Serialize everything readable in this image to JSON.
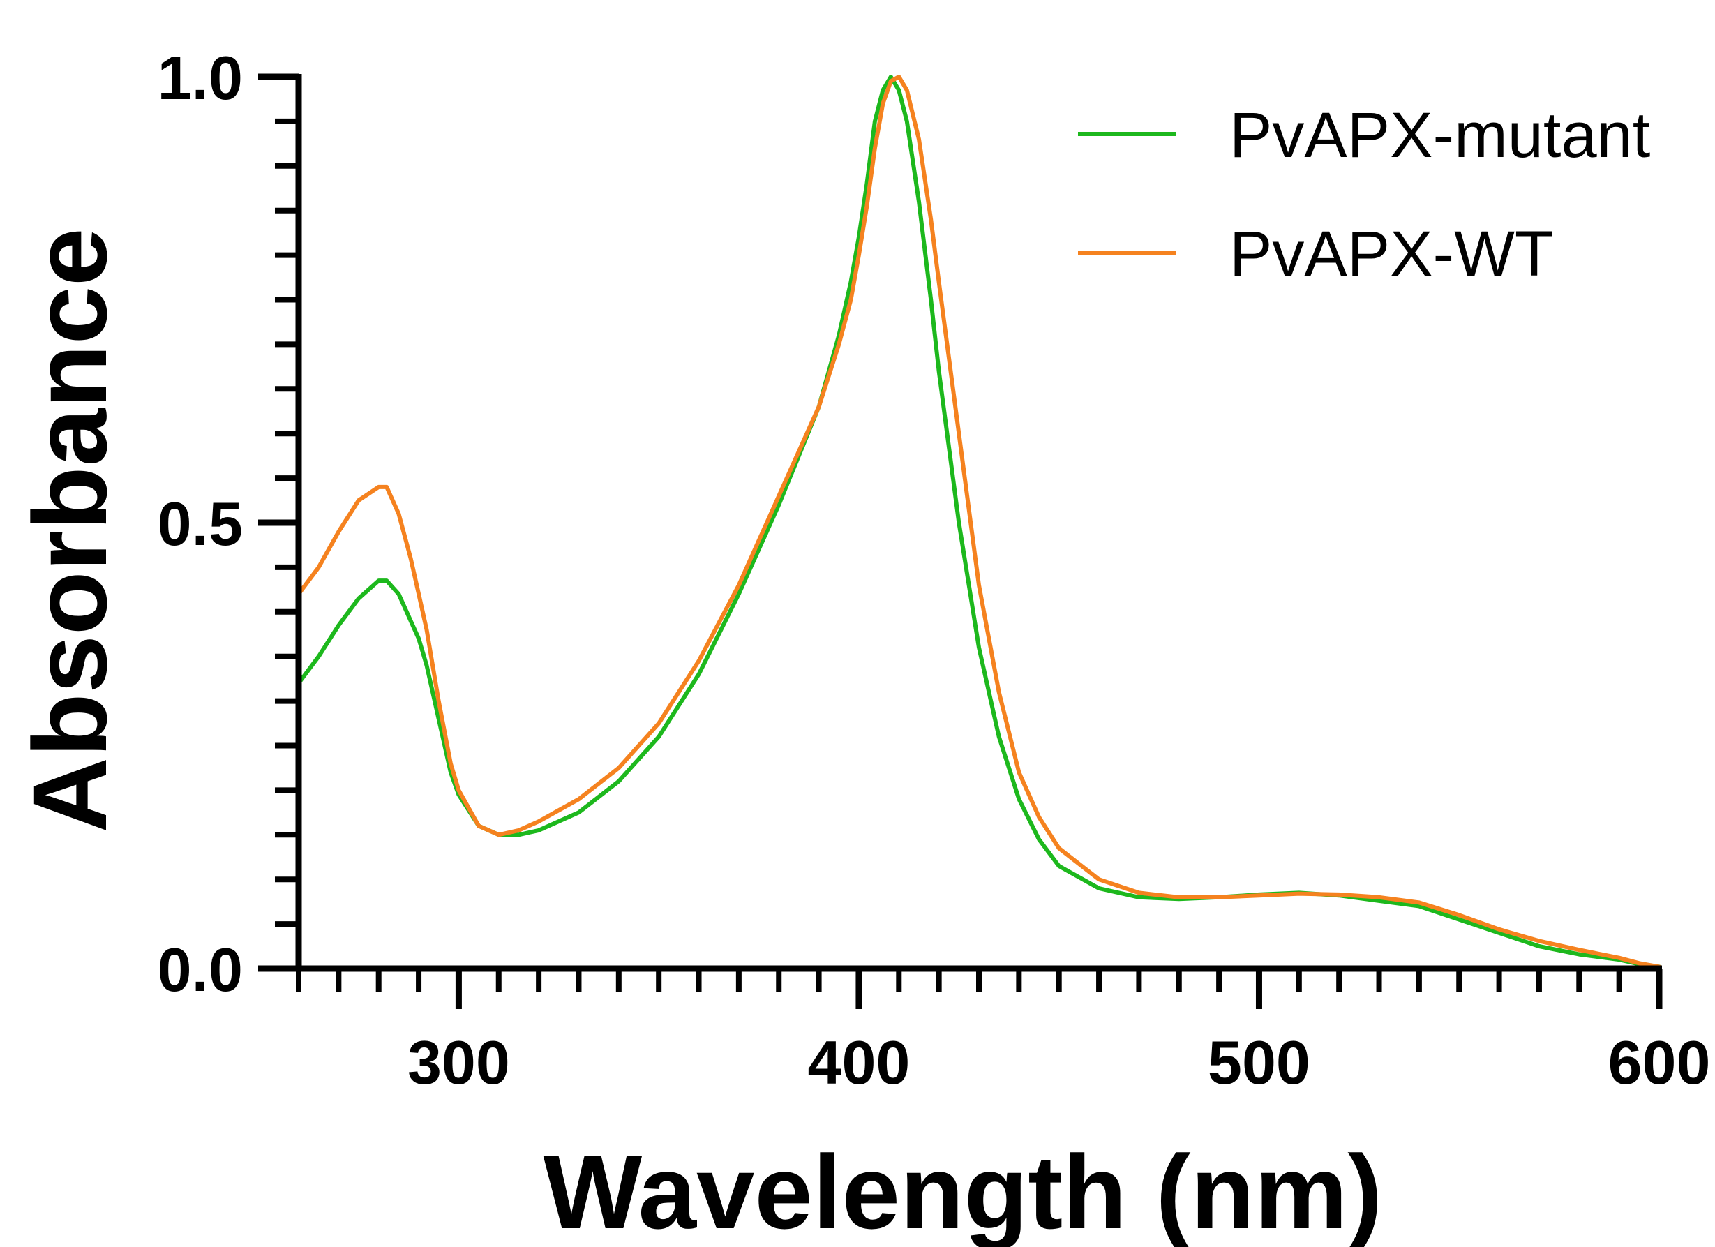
{
  "chart_data": {
    "type": "line",
    "title": "",
    "xlabel": "Wavelength (nm)",
    "ylabel": "Absorbance",
    "xlim": [
      260,
      600
    ],
    "ylim": [
      0,
      1.0
    ],
    "x_major_ticks": [
      300,
      400,
      500,
      600
    ],
    "x_tick_labels": [
      "300",
      "400",
      "500",
      "600"
    ],
    "x_minor_step": 10,
    "y_major_ticks": [
      0,
      0.5,
      1.0
    ],
    "y_tick_labels": [
      "0.0",
      "0.5",
      "1.0"
    ],
    "y_minor_step": 0.05,
    "grid": false,
    "legend_position": "top-right",
    "series": [
      {
        "name": "PvAPX-mutant",
        "color": "#1DB81D",
        "x": [
          260,
          265,
          270,
          275,
          280,
          282,
          285,
          288,
          290,
          292,
          295,
          298,
          300,
          305,
          310,
          315,
          320,
          330,
          340,
          350,
          360,
          370,
          380,
          390,
          395,
          398,
          400,
          402,
          404,
          406,
          408,
          410,
          412,
          415,
          418,
          420,
          425,
          430,
          435,
          440,
          445,
          450,
          460,
          470,
          480,
          490,
          500,
          510,
          520,
          530,
          540,
          550,
          560,
          570,
          580,
          590,
          595,
          600
        ],
        "values": [
          0.32,
          0.35,
          0.385,
          0.415,
          0.435,
          0.435,
          0.42,
          0.39,
          0.37,
          0.34,
          0.28,
          0.22,
          0.195,
          0.16,
          0.15,
          0.15,
          0.155,
          0.175,
          0.21,
          0.26,
          0.33,
          0.42,
          0.52,
          0.63,
          0.71,
          0.77,
          0.82,
          0.88,
          0.95,
          0.985,
          1.0,
          0.985,
          0.95,
          0.86,
          0.75,
          0.67,
          0.5,
          0.36,
          0.26,
          0.19,
          0.145,
          0.115,
          0.09,
          0.08,
          0.078,
          0.08,
          0.083,
          0.085,
          0.082,
          0.076,
          0.07,
          0.055,
          0.04,
          0.025,
          0.016,
          0.01,
          0.005,
          0.002
        ]
      },
      {
        "name": "PvAPX-WT",
        "color": "#F5821F",
        "x": [
          260,
          265,
          270,
          275,
          280,
          282,
          285,
          288,
          290,
          292,
          295,
          298,
          300,
          305,
          310,
          315,
          320,
          330,
          340,
          350,
          360,
          370,
          380,
          390,
          395,
          398,
          400,
          402,
          404,
          406,
          408,
          410,
          412,
          415,
          418,
          420,
          425,
          430,
          435,
          440,
          445,
          450,
          460,
          470,
          480,
          490,
          500,
          510,
          520,
          530,
          540,
          550,
          560,
          570,
          580,
          590,
          595,
          600
        ],
        "values": [
          0.42,
          0.45,
          0.49,
          0.525,
          0.54,
          0.54,
          0.51,
          0.46,
          0.42,
          0.38,
          0.3,
          0.23,
          0.2,
          0.16,
          0.15,
          0.155,
          0.165,
          0.19,
          0.225,
          0.275,
          0.345,
          0.43,
          0.53,
          0.63,
          0.7,
          0.75,
          0.8,
          0.855,
          0.92,
          0.97,
          0.995,
          1.0,
          0.985,
          0.93,
          0.84,
          0.77,
          0.6,
          0.43,
          0.31,
          0.22,
          0.17,
          0.135,
          0.1,
          0.085,
          0.08,
          0.08,
          0.082,
          0.084,
          0.083,
          0.08,
          0.074,
          0.06,
          0.044,
          0.031,
          0.021,
          0.012,
          0.006,
          0.002
        ]
      }
    ]
  }
}
